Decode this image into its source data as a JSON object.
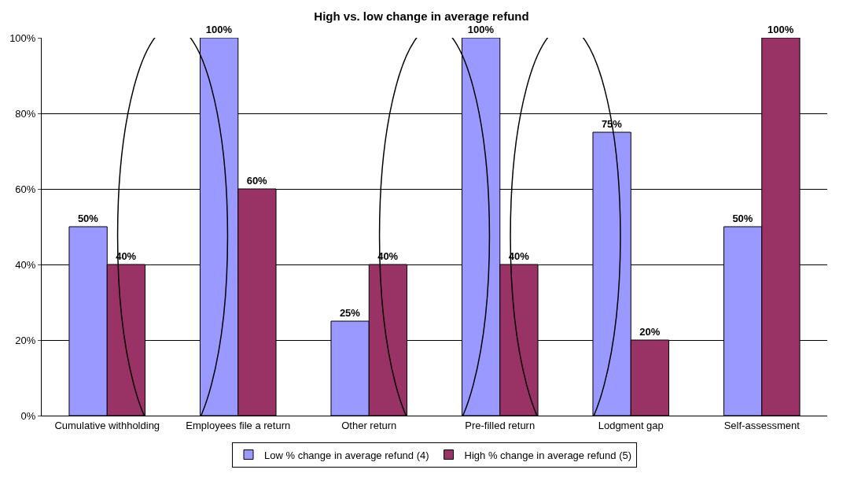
{
  "chart_data": {
    "type": "bar",
    "title": "High vs. low change in average refund",
    "categories": [
      "Cumulative withholding",
      "Employees file a return",
      "Other return",
      "Pre-filled return",
      "Lodgment gap",
      "Self-assessment"
    ],
    "series": [
      {
        "name": "Low % change in average refund (4)",
        "color": "#9999ff",
        "values": [
          50,
          100,
          25,
          100,
          75,
          50
        ],
        "value_labels": [
          "50%",
          "100%",
          "25%",
          "100%",
          "75%",
          "50%"
        ]
      },
      {
        "name": "High % change in average refund (5)",
        "color": "#993366",
        "values": [
          40,
          60,
          40,
          40,
          20,
          100
        ],
        "value_labels": [
          "40%",
          "60%",
          "40%",
          "40%",
          "20%",
          "100%"
        ]
      }
    ],
    "ylim": [
      0,
      100
    ],
    "yticks": [
      {
        "value": 0,
        "label": "0%"
      },
      {
        "value": 20,
        "label": "20%"
      },
      {
        "value": 40,
        "label": "40%"
      },
      {
        "value": 60,
        "label": "60%"
      },
      {
        "value": 80,
        "label": "80%"
      },
      {
        "value": 100,
        "label": "100%"
      }
    ],
    "grid": "y",
    "legend": "bottom"
  }
}
